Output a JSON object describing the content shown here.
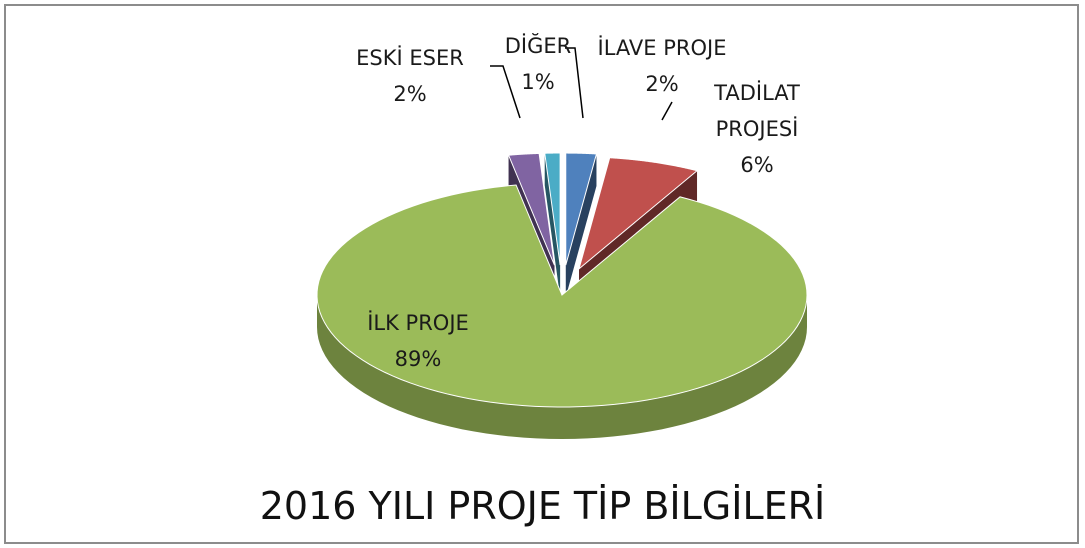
{
  "chart_data": {
    "type": "pie3d",
    "title": "2016 YILI PROJE TİP BİLGİLERİ",
    "categories": [
      "İLAVE PROJE",
      "TADİLAT PROJESİ",
      "İLK PROJE",
      "ESKİ ESER",
      "DİĞER"
    ],
    "values": [
      2,
      6,
      89,
      2,
      1
    ],
    "value_labels": [
      "2%",
      "6%",
      "89%",
      "2%",
      "1%"
    ],
    "colors": [
      "#4f81bd",
      "#c0504d",
      "#9bbb59",
      "#8064a2",
      "#4bacc6"
    ]
  }
}
